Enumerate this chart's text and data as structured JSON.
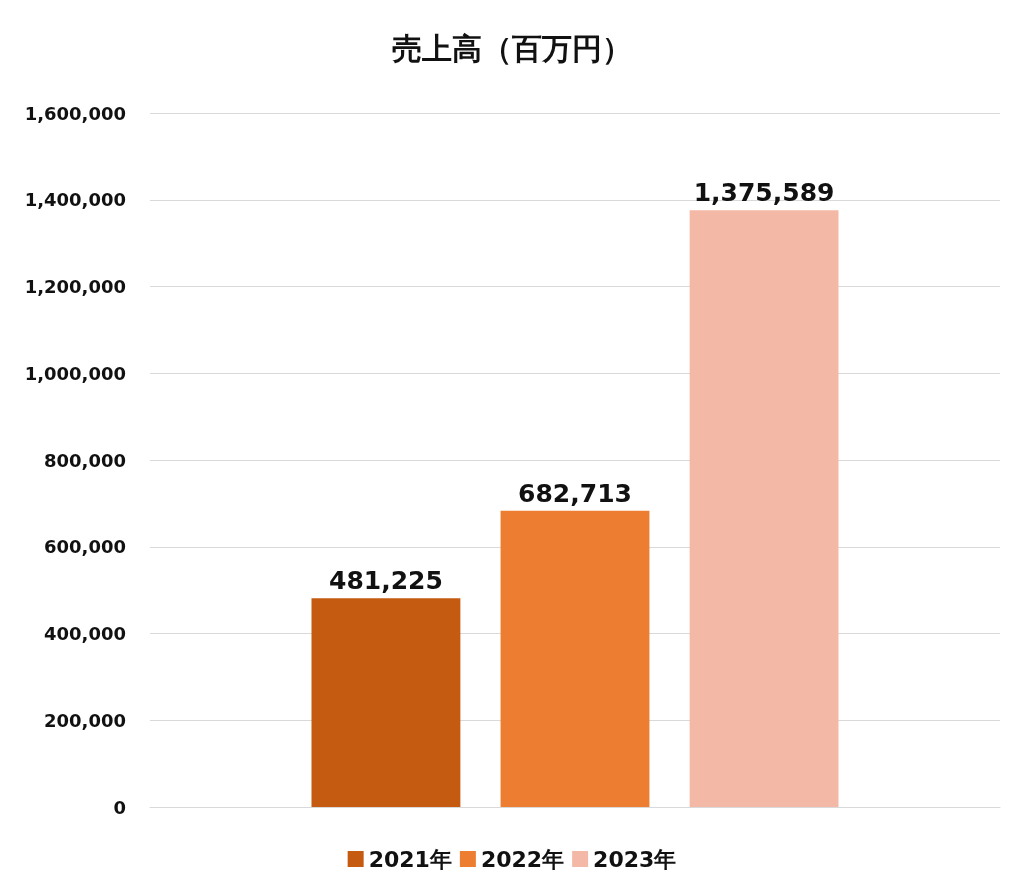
{
  "chart_data": {
    "type": "bar",
    "title": "売上高（百万円）",
    "categories": [
      null
    ],
    "series": [
      {
        "name": "2021年",
        "color": "#c55a11",
        "values": [
          481225
        ],
        "value_labels": [
          "481,225"
        ]
      },
      {
        "name": "2022年",
        "color": "#ed7d31",
        "values": [
          682713
        ],
        "value_labels": [
          "682,713"
        ]
      },
      {
        "name": "2023年",
        "color": "#f4b9a6",
        "values": [
          1375589
        ],
        "value_labels": [
          "1,375,589"
        ]
      }
    ],
    "ylim": [
      0,
      1600000
    ],
    "yticks": [
      0,
      {
        "value": 200000,
        "label": "200,000"
      },
      {
        "value": 400000,
        "label": "400,000"
      },
      {
        "value": 600000,
        "label": "600,000"
      },
      {
        "value": 800000,
        "label": "800,000"
      },
      {
        "value": 1000000,
        "label": "1,000,000"
      },
      {
        "value": 1200000,
        "label": "1,200,000"
      },
      {
        "value": 1400000,
        "label": "1,400,000"
      },
      {
        "value": 1600000,
        "label": "1,600,000"
      }
    ],
    "grid": "y",
    "legend": "bottom"
  }
}
